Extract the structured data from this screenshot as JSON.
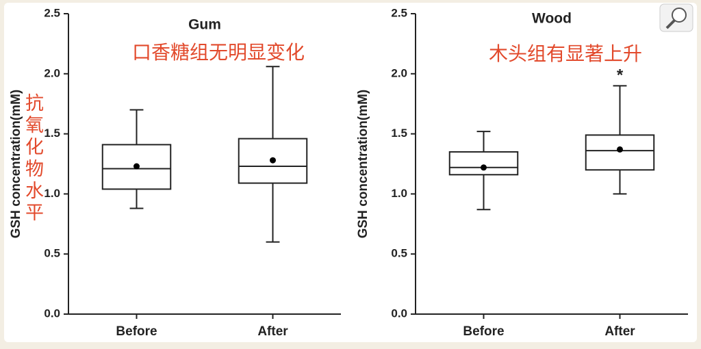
{
  "chart_data": [
    {
      "type": "box",
      "title": "Gum",
      "annotation": "口香糖组无明显变化",
      "side_note": "抗氧化物水平",
      "ylabel": "GSH concentration(mM)",
      "categories": [
        "Before",
        "After"
      ],
      "min": [
        0.88,
        0.6
      ],
      "q1": [
        1.04,
        1.09
      ],
      "median": [
        1.21,
        1.23
      ],
      "q3": [
        1.41,
        1.46
      ],
      "max": [
        1.7,
        2.06
      ],
      "mean": [
        1.23,
        1.28
      ],
      "ylim": [
        0,
        2.5
      ],
      "yticks": [
        {
          "value": 0,
          "label": "0.0"
        },
        0.5,
        {
          "value": 1,
          "label": "1.0"
        },
        1.5,
        {
          "value": 2,
          "label": "2.0"
        },
        2.5
      ]
    },
    {
      "type": "box",
      "title": "Wood",
      "annotation": "木头组有显著上升",
      "ylabel": "GSH concentration(mM)",
      "categories": [
        "Before",
        "After"
      ],
      "min": [
        0.87,
        1.0
      ],
      "q1": [
        1.16,
        1.2
      ],
      "median": [
        1.22,
        1.36
      ],
      "q3": [
        1.35,
        1.49
      ],
      "max": [
        1.52,
        1.9
      ],
      "mean": [
        1.22,
        1.37
      ],
      "significance": [
        null,
        "*"
      ],
      "ylim": [
        0,
        2.5
      ],
      "yticks": [
        {
          "value": 0,
          "label": "0.0"
        },
        0.5,
        {
          "value": 1,
          "label": "1.0"
        },
        1.5,
        {
          "value": 2,
          "label": "2.0"
        },
        2.5
      ]
    }
  ]
}
